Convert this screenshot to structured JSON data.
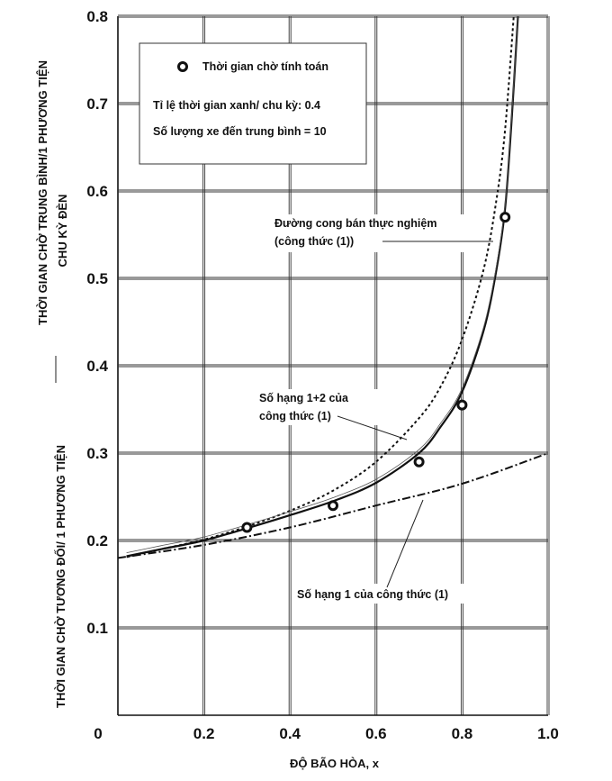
{
  "chart_data": {
    "type": "line",
    "xlabel": "ĐỘ BÃO HÒA, x",
    "ylabel_top_line1": "THỜI GIAN CHỜ TRUNG BÌNH/1 PHƯƠNG TIỆN",
    "ylabel_top_line2": "CHU KỲ ĐÈN",
    "ylabel_bottom": "THỜI GIAN CHỜ TƯƠNG ĐỐI/ 1 PHƯƠNG TIỆN",
    "xlim": [
      0,
      1.0
    ],
    "ylim": [
      0,
      0.8
    ],
    "x_ticks": [
      "0",
      "0.2",
      "0.4",
      "0.6",
      "0.8",
      "1.0"
    ],
    "y_ticks": [
      "0.1",
      "0.2",
      "0.3",
      "0.4",
      "0.5",
      "0.6",
      "0.7",
      "0.8"
    ],
    "grid": true,
    "legend": {
      "marker_label": "Thời gian chờ tính toán",
      "line1": "Tỉ lệ thời gian xanh/ chu kỳ: 0.4",
      "line2": "Số lượng xe đến trung bình = 10"
    },
    "annotations": {
      "semi_empirical_line1": "Đường cong bán thực nghiệm",
      "semi_empirical_line2": "(công thức (1))",
      "terms12_line1": "Số hạng 1+2 của",
      "terms12_line2": "công thức (1)",
      "term1": "Số hạng 1 của công thức (1)"
    },
    "series": [
      {
        "role": "computed points",
        "x": [
          0.3,
          0.5,
          0.7,
          0.8,
          0.9
        ],
        "y": [
          0.215,
          0.24,
          0.29,
          0.355,
          0.57
        ]
      },
      {
        "role": "semi-empirical curve (dotted)",
        "x": [
          0.02,
          0.1,
          0.2,
          0.3,
          0.4,
          0.5,
          0.6,
          0.7,
          0.75,
          0.8,
          0.85,
          0.88,
          0.9,
          0.92
        ],
        "y": [
          0.181,
          0.19,
          0.201,
          0.216,
          0.234,
          0.257,
          0.29,
          0.34,
          0.376,
          0.43,
          0.51,
          0.59,
          0.67,
          0.8
        ]
      },
      {
        "role": "terms 1+2 (solid)",
        "x": [
          0.02,
          0.1,
          0.2,
          0.3,
          0.4,
          0.5,
          0.6,
          0.7,
          0.75,
          0.8,
          0.85,
          0.88,
          0.9,
          0.915,
          0.93
        ],
        "y": [
          0.182,
          0.19,
          0.2,
          0.214,
          0.229,
          0.245,
          0.266,
          0.3,
          0.33,
          0.37,
          0.44,
          0.51,
          0.58,
          0.68,
          0.8
        ]
      },
      {
        "role": "term 1 (dash-dot)",
        "x": [
          0.0,
          0.2,
          0.4,
          0.6,
          0.8,
          1.0
        ],
        "y": [
          0.18,
          0.195,
          0.215,
          0.24,
          0.265,
          0.3
        ]
      }
    ]
  }
}
